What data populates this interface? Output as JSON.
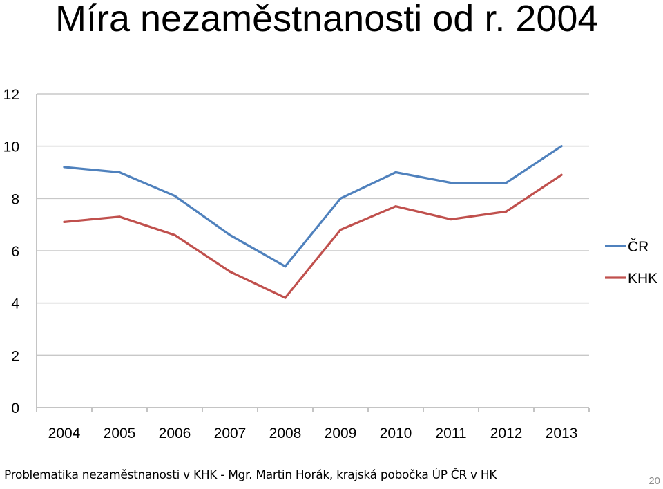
{
  "slide": {
    "title": "Míra nezaměstnanosti od r. 2004",
    "footer": "Problematika nezaměstnanosti v KHK - Mgr. Martin Horák, krajská pobočka ÚP ČR v HK",
    "page_number": "20"
  },
  "chart_data": {
    "type": "line",
    "title": "",
    "xlabel": "",
    "ylabel": "",
    "categories": [
      "2004",
      "2005",
      "2006",
      "2007",
      "2008",
      "2009",
      "2010",
      "2011",
      "2012",
      "2013"
    ],
    "ylim": [
      0,
      12
    ],
    "yticks": [
      0,
      2,
      4,
      6,
      8,
      10,
      12
    ],
    "grid": true,
    "legend": "right",
    "series": [
      {
        "name": "ČR",
        "color": "#4f81bd",
        "values": [
          9.2,
          9.0,
          8.1,
          6.6,
          5.4,
          8.0,
          9.0,
          8.6,
          8.6,
          10.0
        ]
      },
      {
        "name": "KHK",
        "color": "#c0504d",
        "values": [
          7.1,
          7.3,
          6.6,
          5.2,
          4.2,
          6.8,
          7.7,
          7.2,
          7.5,
          8.9
        ]
      }
    ]
  }
}
